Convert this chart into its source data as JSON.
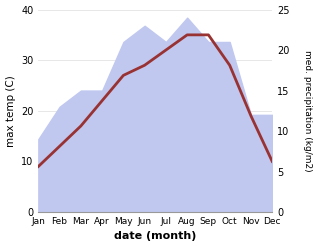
{
  "months": [
    "Jan",
    "Feb",
    "Mar",
    "Apr",
    "May",
    "Jun",
    "Jul",
    "Aug",
    "Sep",
    "Oct",
    "Nov",
    "Dec"
  ],
  "x": [
    0,
    1,
    2,
    3,
    4,
    5,
    6,
    7,
    8,
    9,
    10,
    11
  ],
  "temp_max": [
    9,
    13,
    17,
    22,
    27,
    29,
    32,
    35,
    35,
    29,
    19,
    10
  ],
  "precipitation_right": [
    9,
    13,
    15,
    15,
    21,
    23,
    21,
    24,
    21,
    21,
    12,
    12
  ],
  "temp_color": "#993333",
  "precip_fill_color": "#c0c8f0",
  "temp_ylim": [
    0,
    40
  ],
  "precip_ylim": [
    0,
    25
  ],
  "xlabel": "date (month)",
  "ylabel_left": "max temp (C)",
  "ylabel_right": "med. precipitation (kg/m2)",
  "yticks_left": [
    0,
    10,
    20,
    30,
    40
  ],
  "yticks_right": [
    0,
    5,
    10,
    15,
    20,
    25
  ],
  "background_color": "#ffffff"
}
